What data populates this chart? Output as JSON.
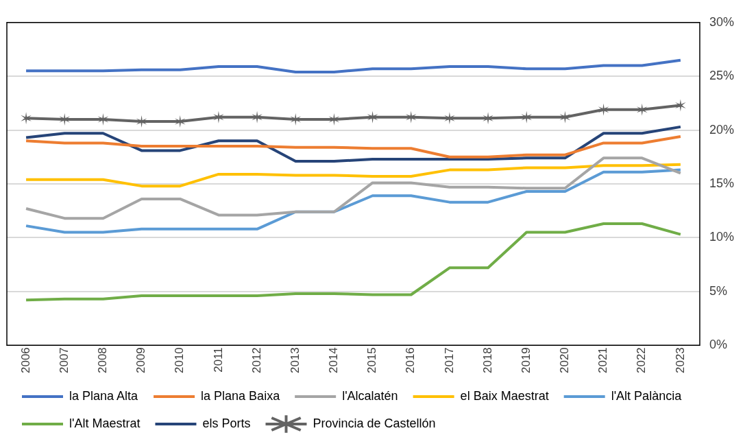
{
  "chart_data": {
    "type": "line",
    "categories": [
      "2006",
      "2007",
      "2008",
      "2009",
      "2010",
      "2011",
      "2012",
      "2013",
      "2014",
      "2015",
      "2016",
      "2017",
      "2018",
      "2019",
      "2020",
      "2021",
      "2022",
      "2023"
    ],
    "series": [
      {
        "name": "la Plana Alta",
        "color": "#4472c4",
        "marker": "none",
        "values": [
          25.5,
          25.5,
          25.5,
          25.6,
          25.6,
          25.9,
          25.9,
          25.4,
          25.4,
          25.7,
          25.7,
          25.9,
          25.9,
          25.7,
          25.7,
          26.0,
          26.0,
          26.5
        ]
      },
      {
        "name": "la Plana Baixa",
        "color": "#ed7d31",
        "marker": "none",
        "values": [
          19.0,
          18.8,
          18.8,
          18.5,
          18.5,
          18.5,
          18.5,
          18.4,
          18.4,
          18.3,
          18.3,
          17.5,
          17.5,
          17.7,
          17.7,
          18.8,
          18.8,
          19.4
        ]
      },
      {
        "name": "l'Alcalatén",
        "color": "#a5a5a5",
        "marker": "none",
        "values": [
          12.7,
          11.8,
          11.8,
          13.6,
          13.6,
          12.1,
          12.1,
          12.4,
          12.4,
          15.1,
          15.1,
          14.7,
          14.7,
          14.6,
          14.6,
          17.4,
          17.4,
          16.0
        ]
      },
      {
        "name": "el Baix Maestrat",
        "color": "#ffc000",
        "marker": "none",
        "values": [
          15.4,
          15.4,
          15.4,
          14.8,
          14.8,
          15.9,
          15.9,
          15.8,
          15.8,
          15.7,
          15.7,
          16.3,
          16.3,
          16.5,
          16.5,
          16.7,
          16.7,
          16.8
        ]
      },
      {
        "name": "l'Alt Palància",
        "color": "#5b9bd5",
        "marker": "none",
        "values": [
          11.1,
          10.5,
          10.5,
          10.8,
          10.8,
          10.8,
          10.8,
          12.4,
          12.4,
          13.9,
          13.9,
          13.3,
          13.3,
          14.3,
          14.3,
          16.1,
          16.1,
          16.3
        ]
      },
      {
        "name": "l'Alt Maestrat",
        "color": "#70ad47",
        "marker": "none",
        "values": [
          4.2,
          4.3,
          4.3,
          4.6,
          4.6,
          4.6,
          4.6,
          4.8,
          4.8,
          4.7,
          4.7,
          7.2,
          7.2,
          10.5,
          10.5,
          11.3,
          11.3,
          10.3
        ]
      },
      {
        "name": "els Ports",
        "color": "#264478",
        "marker": "none",
        "values": [
          19.3,
          19.7,
          19.7,
          18.1,
          18.1,
          19.0,
          19.0,
          17.1,
          17.1,
          17.3,
          17.3,
          17.3,
          17.3,
          17.4,
          17.4,
          19.7,
          19.7,
          20.3
        ]
      },
      {
        "name": "Provincia de Castellón",
        "color": "#636363",
        "marker": "cross",
        "values": [
          21.1,
          21.0,
          21.0,
          20.8,
          20.8,
          21.2,
          21.2,
          21.0,
          21.0,
          21.2,
          21.2,
          21.1,
          21.1,
          21.2,
          21.2,
          21.9,
          21.9,
          22.3
        ]
      }
    ],
    "ylim": [
      0,
      30
    ],
    "yticks": [
      {
        "value": 0,
        "label": "0%"
      },
      {
        "value": 5,
        "label": "5%"
      },
      {
        "value": 10,
        "label": "10%"
      },
      {
        "value": 15,
        "label": "15%"
      },
      {
        "value": 20,
        "label": "20%"
      },
      {
        "value": 25,
        "label": "25%"
      },
      {
        "value": 30,
        "label": "30%"
      }
    ],
    "grid": "y",
    "legend": "bottom",
    "line_style": "solid"
  }
}
